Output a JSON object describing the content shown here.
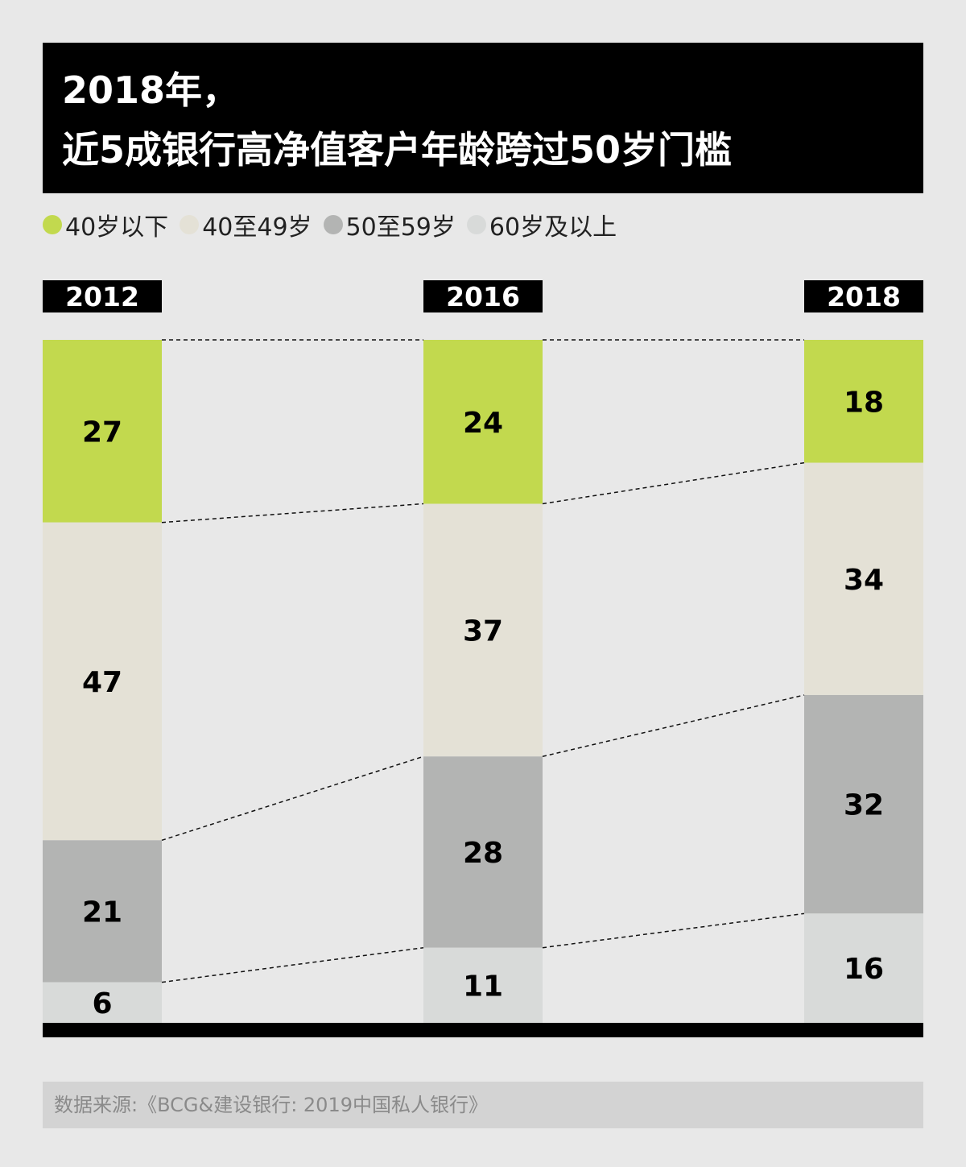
{
  "title": {
    "line1": "2018年，",
    "line2": "近5成银行高净值客户年龄跨过50岁门槛"
  },
  "legend": [
    {
      "label": "40岁以下",
      "color": "#c2d94e"
    },
    {
      "label": "40至49岁",
      "color": "#e4e1d6"
    },
    {
      "label": "50至59岁",
      "color": "#b3b4b3"
    },
    {
      "label": "60岁及以上",
      "color": "#d8dad9"
    }
  ],
  "chart_data": {
    "type": "bar",
    "stacked": true,
    "categories": [
      "2012",
      "2016",
      "2018"
    ],
    "series": [
      {
        "name": "40岁以下",
        "values": [
          27,
          24,
          18
        ],
        "color": "#c2d94e"
      },
      {
        "name": "40至49岁",
        "values": [
          47,
          37,
          34
        ],
        "color": "#e4e1d6"
      },
      {
        "name": "50至59岁",
        "values": [
          21,
          28,
          32
        ],
        "color": "#b3b4b3"
      },
      {
        "name": "60岁及以上",
        "values": [
          6,
          11,
          16
        ],
        "color": "#d8dad9"
      }
    ],
    "connector_lines": true,
    "data_labels": true
  },
  "source": "数据来源:《BCG&建设银行: 2019中国私人银行》"
}
